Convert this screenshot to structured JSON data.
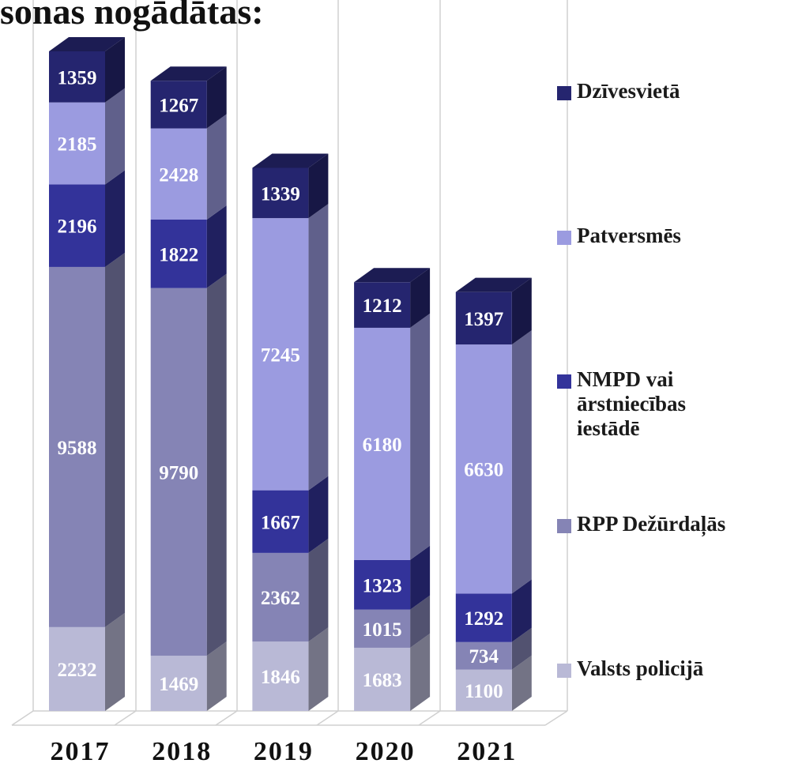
{
  "chart_data": {
    "type": "bar3d_stacked",
    "title": "sonas nogādātas:",
    "categories": [
      "2017",
      "2018",
      "2019",
      "2020",
      "2021"
    ],
    "series": [
      {
        "name": "Valsts policijā",
        "color": "#b9b9d6",
        "values": [
          2232,
          1469,
          1846,
          1683,
          1100
        ]
      },
      {
        "name": "RPP Dežūrdaļās",
        "color": "#8584b5",
        "values": [
          9588,
          9790,
          2362,
          1015,
          734
        ]
      },
      {
        "name": "NMPD vai ārstniecības iestādē",
        "color": "#33339a",
        "values": [
          2196,
          1822,
          1667,
          1323,
          1292
        ]
      },
      {
        "name": "Patversmēs",
        "color": "#9b9be0",
        "values": [
          2185,
          2428,
          7245,
          6180,
          6630
        ]
      },
      {
        "name": "Dzīvesvietā",
        "color": "#25256f",
        "values": [
          1359,
          1267,
          1339,
          1212,
          1397
        ]
      }
    ]
  }
}
